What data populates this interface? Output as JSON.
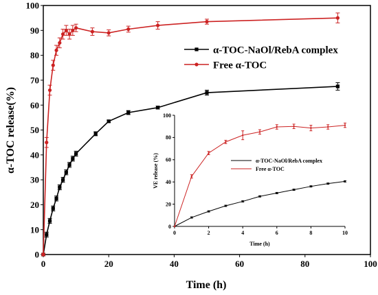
{
  "chart_data": [
    {
      "type": "line",
      "xlabel": "Time (h)",
      "ylabel": "α-TOC release(%)",
      "xlim": [
        0,
        100
      ],
      "ylim": [
        0,
        100
      ],
      "xticks": [
        0,
        20,
        40,
        60,
        80,
        100
      ],
      "yticks": [
        0,
        10,
        20,
        30,
        40,
        50,
        60,
        70,
        80,
        90,
        100
      ],
      "grid": false,
      "legend_position": "top-right",
      "series": [
        {
          "name": "α-TOC-NaOl/RebA complex",
          "color": "#000000",
          "marker": "square",
          "x": [
            0,
            1,
            2,
            3,
            4,
            5,
            6,
            7,
            8,
            9,
            10,
            16,
            20,
            26,
            35,
            50,
            90
          ],
          "y": [
            0,
            8,
            13.5,
            18.5,
            22.5,
            27,
            30,
            33,
            36,
            38.5,
            40.5,
            48.5,
            53.5,
            57,
            59,
            65,
            67.5
          ],
          "err": [
            0.5,
            1,
            1,
            1,
            1,
            1,
            1,
            1,
            1,
            1,
            1,
            0.8,
            0.5,
            0.8,
            0.6,
            1,
            1.5
          ]
        },
        {
          "name": "Free α-TOC",
          "color": "#cc2222",
          "marker": "circle",
          "x": [
            0,
            1,
            2,
            3,
            4,
            5,
            6,
            7,
            8,
            9,
            10,
            15,
            20,
            26,
            35,
            50,
            90
          ],
          "y": [
            0,
            45,
            66,
            76,
            82,
            85,
            88.5,
            90,
            88.5,
            90,
            91,
            89.5,
            89,
            90.5,
            92,
            93.5,
            95
          ],
          "err": [
            0.5,
            2,
            2,
            2,
            2,
            2,
            2,
            2,
            2,
            2,
            1.5,
            1.5,
            1.2,
            1.2,
            1.5,
            1,
            2
          ]
        }
      ]
    },
    {
      "type": "line",
      "xlabel": "Time (h)",
      "ylabel": "VE release (%)",
      "xlim": [
        0,
        10
      ],
      "ylim": [
        0,
        100
      ],
      "xticks": [
        0,
        2,
        4,
        6,
        8,
        10
      ],
      "yticks": [
        0,
        20,
        40,
        60,
        80,
        100
      ],
      "grid": false,
      "legend_position": "center",
      "series": [
        {
          "name": "α-TOC-NaOl/RebA complex",
          "color": "#000000",
          "marker": "dot",
          "x": [
            0,
            1,
            2,
            3,
            4,
            5,
            6,
            7,
            8,
            9,
            10
          ],
          "y": [
            0,
            8,
            13.5,
            18.5,
            22.5,
            27,
            30,
            33,
            36,
            38.5,
            40.5
          ],
          "err": [
            0,
            0.6,
            0.6,
            0.6,
            0.6,
            0.6,
            0.6,
            0.6,
            0.6,
            0.6,
            0.6
          ]
        },
        {
          "name": "Free α-TOC",
          "color": "#cc2222",
          "marker": "dot",
          "x": [
            0,
            1,
            2,
            3,
            4,
            5,
            6,
            7,
            8,
            9,
            10
          ],
          "y": [
            0,
            45,
            66,
            76,
            82,
            85,
            89.5,
            90,
            88.5,
            89.5,
            91
          ],
          "err": [
            0,
            1.5,
            1.5,
            1.5,
            4,
            2,
            2,
            2,
            2.5,
            2,
            2
          ]
        }
      ]
    }
  ]
}
